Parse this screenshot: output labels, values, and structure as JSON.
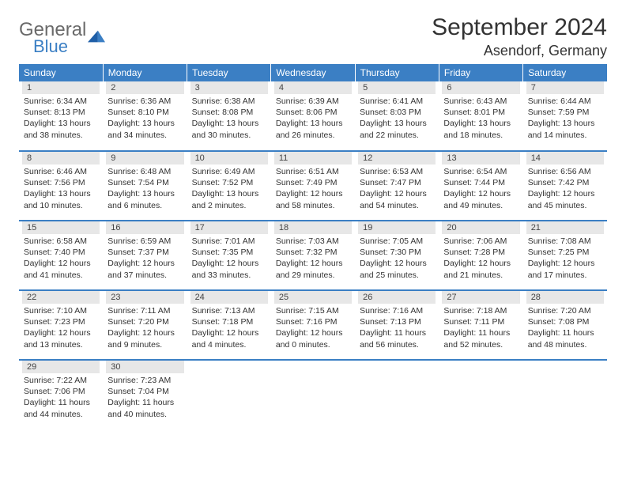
{
  "logo": {
    "word1": "General",
    "word2": "Blue"
  },
  "title": "September 2024",
  "location": "Asendorf, Germany",
  "colors": {
    "header_bg": "#3b7fc4",
    "header_fg": "#ffffff",
    "daynum_bg": "#e7e7e7",
    "row_divider": "#3b7fc4",
    "text": "#333333",
    "logo_gray": "#6a6a6a",
    "logo_blue": "#3b7fc4"
  },
  "weekdays": [
    "Sunday",
    "Monday",
    "Tuesday",
    "Wednesday",
    "Thursday",
    "Friday",
    "Saturday"
  ],
  "weeks": [
    [
      {
        "n": "1",
        "sunrise": "Sunrise: 6:34 AM",
        "sunset": "Sunset: 8:13 PM",
        "day1": "Daylight: 13 hours",
        "day2": "and 38 minutes."
      },
      {
        "n": "2",
        "sunrise": "Sunrise: 6:36 AM",
        "sunset": "Sunset: 8:10 PM",
        "day1": "Daylight: 13 hours",
        "day2": "and 34 minutes."
      },
      {
        "n": "3",
        "sunrise": "Sunrise: 6:38 AM",
        "sunset": "Sunset: 8:08 PM",
        "day1": "Daylight: 13 hours",
        "day2": "and 30 minutes."
      },
      {
        "n": "4",
        "sunrise": "Sunrise: 6:39 AM",
        "sunset": "Sunset: 8:06 PM",
        "day1": "Daylight: 13 hours",
        "day2": "and 26 minutes."
      },
      {
        "n": "5",
        "sunrise": "Sunrise: 6:41 AM",
        "sunset": "Sunset: 8:03 PM",
        "day1": "Daylight: 13 hours",
        "day2": "and 22 minutes."
      },
      {
        "n": "6",
        "sunrise": "Sunrise: 6:43 AM",
        "sunset": "Sunset: 8:01 PM",
        "day1": "Daylight: 13 hours",
        "day2": "and 18 minutes."
      },
      {
        "n": "7",
        "sunrise": "Sunrise: 6:44 AM",
        "sunset": "Sunset: 7:59 PM",
        "day1": "Daylight: 13 hours",
        "day2": "and 14 minutes."
      }
    ],
    [
      {
        "n": "8",
        "sunrise": "Sunrise: 6:46 AM",
        "sunset": "Sunset: 7:56 PM",
        "day1": "Daylight: 13 hours",
        "day2": "and 10 minutes."
      },
      {
        "n": "9",
        "sunrise": "Sunrise: 6:48 AM",
        "sunset": "Sunset: 7:54 PM",
        "day1": "Daylight: 13 hours",
        "day2": "and 6 minutes."
      },
      {
        "n": "10",
        "sunrise": "Sunrise: 6:49 AM",
        "sunset": "Sunset: 7:52 PM",
        "day1": "Daylight: 13 hours",
        "day2": "and 2 minutes."
      },
      {
        "n": "11",
        "sunrise": "Sunrise: 6:51 AM",
        "sunset": "Sunset: 7:49 PM",
        "day1": "Daylight: 12 hours",
        "day2": "and 58 minutes."
      },
      {
        "n": "12",
        "sunrise": "Sunrise: 6:53 AM",
        "sunset": "Sunset: 7:47 PM",
        "day1": "Daylight: 12 hours",
        "day2": "and 54 minutes."
      },
      {
        "n": "13",
        "sunrise": "Sunrise: 6:54 AM",
        "sunset": "Sunset: 7:44 PM",
        "day1": "Daylight: 12 hours",
        "day2": "and 49 minutes."
      },
      {
        "n": "14",
        "sunrise": "Sunrise: 6:56 AM",
        "sunset": "Sunset: 7:42 PM",
        "day1": "Daylight: 12 hours",
        "day2": "and 45 minutes."
      }
    ],
    [
      {
        "n": "15",
        "sunrise": "Sunrise: 6:58 AM",
        "sunset": "Sunset: 7:40 PM",
        "day1": "Daylight: 12 hours",
        "day2": "and 41 minutes."
      },
      {
        "n": "16",
        "sunrise": "Sunrise: 6:59 AM",
        "sunset": "Sunset: 7:37 PM",
        "day1": "Daylight: 12 hours",
        "day2": "and 37 minutes."
      },
      {
        "n": "17",
        "sunrise": "Sunrise: 7:01 AM",
        "sunset": "Sunset: 7:35 PM",
        "day1": "Daylight: 12 hours",
        "day2": "and 33 minutes."
      },
      {
        "n": "18",
        "sunrise": "Sunrise: 7:03 AM",
        "sunset": "Sunset: 7:32 PM",
        "day1": "Daylight: 12 hours",
        "day2": "and 29 minutes."
      },
      {
        "n": "19",
        "sunrise": "Sunrise: 7:05 AM",
        "sunset": "Sunset: 7:30 PM",
        "day1": "Daylight: 12 hours",
        "day2": "and 25 minutes."
      },
      {
        "n": "20",
        "sunrise": "Sunrise: 7:06 AM",
        "sunset": "Sunset: 7:28 PM",
        "day1": "Daylight: 12 hours",
        "day2": "and 21 minutes."
      },
      {
        "n": "21",
        "sunrise": "Sunrise: 7:08 AM",
        "sunset": "Sunset: 7:25 PM",
        "day1": "Daylight: 12 hours",
        "day2": "and 17 minutes."
      }
    ],
    [
      {
        "n": "22",
        "sunrise": "Sunrise: 7:10 AM",
        "sunset": "Sunset: 7:23 PM",
        "day1": "Daylight: 12 hours",
        "day2": "and 13 minutes."
      },
      {
        "n": "23",
        "sunrise": "Sunrise: 7:11 AM",
        "sunset": "Sunset: 7:20 PM",
        "day1": "Daylight: 12 hours",
        "day2": "and 9 minutes."
      },
      {
        "n": "24",
        "sunrise": "Sunrise: 7:13 AM",
        "sunset": "Sunset: 7:18 PM",
        "day1": "Daylight: 12 hours",
        "day2": "and 4 minutes."
      },
      {
        "n": "25",
        "sunrise": "Sunrise: 7:15 AM",
        "sunset": "Sunset: 7:16 PM",
        "day1": "Daylight: 12 hours",
        "day2": "and 0 minutes."
      },
      {
        "n": "26",
        "sunrise": "Sunrise: 7:16 AM",
        "sunset": "Sunset: 7:13 PM",
        "day1": "Daylight: 11 hours",
        "day2": "and 56 minutes."
      },
      {
        "n": "27",
        "sunrise": "Sunrise: 7:18 AM",
        "sunset": "Sunset: 7:11 PM",
        "day1": "Daylight: 11 hours",
        "day2": "and 52 minutes."
      },
      {
        "n": "28",
        "sunrise": "Sunrise: 7:20 AM",
        "sunset": "Sunset: 7:08 PM",
        "day1": "Daylight: 11 hours",
        "day2": "and 48 minutes."
      }
    ],
    [
      {
        "n": "29",
        "sunrise": "Sunrise: 7:22 AM",
        "sunset": "Sunset: 7:06 PM",
        "day1": "Daylight: 11 hours",
        "day2": "and 44 minutes."
      },
      {
        "n": "30",
        "sunrise": "Sunrise: 7:23 AM",
        "sunset": "Sunset: 7:04 PM",
        "day1": "Daylight: 11 hours",
        "day2": "and 40 minutes."
      },
      null,
      null,
      null,
      null,
      null
    ]
  ]
}
